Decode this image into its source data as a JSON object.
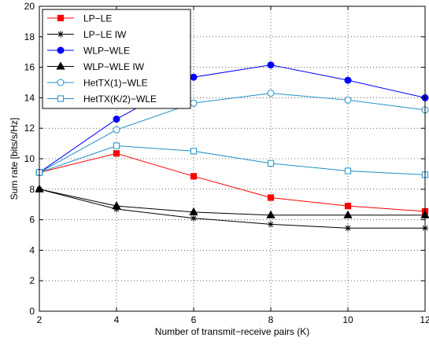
{
  "chart_data": {
    "type": "line",
    "xlabel": "Number of transmit−receive pairs (K)",
    "ylabel": "Sum rate [bits/s/Hz]",
    "xlim": [
      2,
      12
    ],
    "ylim": [
      0,
      20
    ],
    "xticks": [
      "2",
      "4",
      "6",
      "8",
      "10",
      "12"
    ],
    "yticks": [
      "0",
      "2",
      "4",
      "6",
      "8",
      "10",
      "12",
      "14",
      "16",
      "18",
      "20"
    ],
    "grid": true,
    "legend_position": "top-left",
    "x": [
      2,
      4,
      6,
      8,
      10,
      12
    ],
    "series": [
      {
        "name": "LP−LE",
        "color": "#ff0000",
        "marker": "square-filled",
        "values": [
          9.1,
          10.35,
          8.85,
          7.45,
          6.9,
          6.55
        ]
      },
      {
        "name": "LP−LE IW",
        "color": "#000000",
        "marker": "asterisk",
        "values": [
          8.0,
          6.7,
          6.1,
          5.7,
          5.45,
          5.45
        ]
      },
      {
        "name": "WLP−WLE",
        "color": "#0000ff",
        "marker": "circle-filled",
        "values": [
          9.1,
          12.6,
          15.35,
          16.15,
          15.15,
          14.0
        ]
      },
      {
        "name": "WLP−WLE IW",
        "color": "#000000",
        "marker": "triangle-filled",
        "values": [
          8.0,
          6.9,
          6.5,
          6.3,
          6.3,
          6.3
        ]
      },
      {
        "name": "HetTX(1)−WLE",
        "color": "#1e90c8",
        "marker": "circle-open",
        "values": [
          9.1,
          11.9,
          13.65,
          14.3,
          13.85,
          13.2
        ]
      },
      {
        "name": "HetTX(K/2)−WLE",
        "color": "#1e90c8",
        "marker": "square-open",
        "values": [
          9.1,
          10.85,
          10.5,
          9.7,
          9.2,
          8.95
        ]
      }
    ]
  }
}
